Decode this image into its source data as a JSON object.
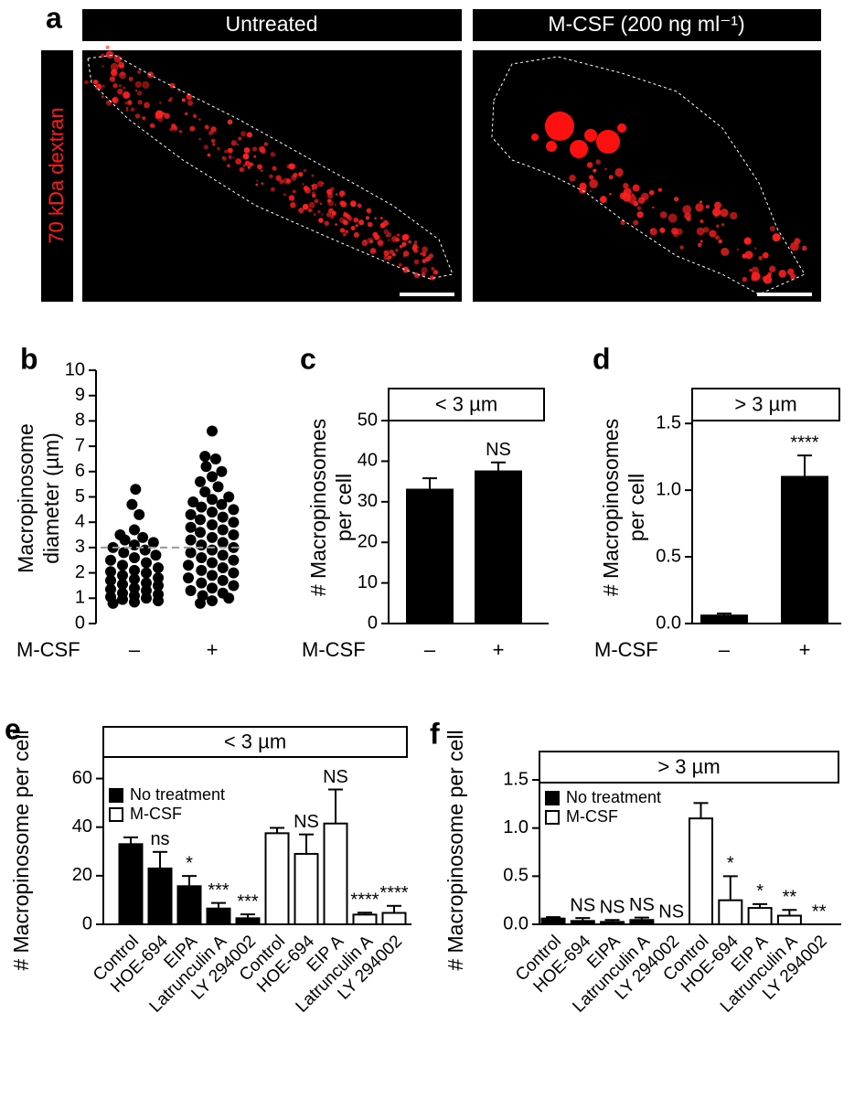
{
  "panel_a": {
    "label": "a",
    "titles": [
      "Untreated",
      "M-CSF (200 ng ml⁻¹)"
    ],
    "side_label": "70 kDa dextran"
  },
  "chart_data": [
    {
      "type": "strip",
      "panel_label": "b",
      "ylabel": [
        "Macropinosome",
        "diameter (µm)"
      ],
      "xlabel": "M-CSF",
      "categories": [
        "–",
        "+"
      ],
      "color": "#000000",
      "reference_line": 3,
      "reference_color": "#999999",
      "values": [
        [
          0.8,
          0.85,
          0.9,
          0.95,
          1.0,
          1.05,
          1.1,
          1.15,
          1.2,
          1.3,
          1.35,
          1.4,
          1.5,
          1.55,
          1.6,
          1.7,
          1.75,
          1.8,
          1.9,
          2.0,
          2.05,
          2.1,
          2.2,
          2.3,
          2.4,
          2.5,
          2.6,
          2.7,
          2.8,
          2.9,
          3.0,
          3.1,
          3.2,
          3.3,
          3.4,
          3.5,
          3.7,
          4.3,
          4.7,
          5.3
        ],
        [
          0.8,
          0.9,
          1.0,
          1.1,
          1.2,
          1.3,
          1.4,
          1.5,
          1.6,
          1.7,
          1.8,
          1.9,
          2.0,
          2.1,
          2.2,
          2.3,
          2.4,
          2.5,
          2.6,
          2.7,
          2.8,
          2.9,
          3.0,
          3.1,
          3.2,
          3.3,
          3.4,
          3.5,
          3.6,
          3.7,
          3.8,
          3.9,
          4.0,
          4.1,
          4.2,
          4.3,
          4.4,
          4.5,
          4.6,
          4.7,
          4.8,
          4.9,
          5.0,
          5.2,
          5.4,
          5.6,
          5.8,
          6.0,
          6.2,
          6.5,
          6.6,
          7.6
        ]
      ],
      "ylim": [
        0,
        10
      ],
      "yticks": [
        0,
        1,
        2,
        3,
        4,
        5,
        6,
        7,
        8,
        9,
        10
      ]
    },
    {
      "type": "bar",
      "panel_label": "c",
      "panel_title": "< 3 µm",
      "ylabel": [
        "# Macropinosomes",
        "per cell"
      ],
      "xlabel": "M-CSF",
      "categories": [
        "–",
        "+"
      ],
      "values": [
        33,
        37.5
      ],
      "errors": [
        2.8,
        2.2
      ],
      "significance": [
        null,
        "NS"
      ],
      "color": "#000000",
      "ylim": [
        0,
        57
      ],
      "yticks": [
        0,
        10,
        20,
        30,
        40,
        50
      ]
    },
    {
      "type": "bar",
      "panel_label": "d",
      "panel_title": "> 3 µm",
      "ylabel": [
        "# Macropinosomes",
        "per cell"
      ],
      "xlabel": "M-CSF",
      "categories": [
        "–",
        "+"
      ],
      "values": [
        0.06,
        1.1
      ],
      "errors": [
        0.015,
        0.16
      ],
      "significance": [
        null,
        "****"
      ],
      "color": "#000000",
      "ylim": [
        0,
        1.7
      ],
      "yticks": [
        {
          "value": 0,
          "label": "0.0"
        },
        0.5,
        {
          "value": 1,
          "label": "1.0"
        },
        1.5
      ]
    },
    {
      "type": "grouped_bar",
      "panel_label": "e",
      "panel_title": "< 3 µm",
      "ylabel": [
        "# Macropinosome per cell"
      ],
      "categories": [
        "Control",
        "HOE-694",
        "EIPA",
        "Latrunculin A",
        "LY 294002",
        "Control",
        "HOE-694",
        "EIP A",
        "Latrunculin A",
        "LY 294002"
      ],
      "series": [
        {
          "name": "No treatment",
          "color": "#000000",
          "values": [
            33,
            23,
            15.7,
            6.5,
            2.5,
            null,
            null,
            null,
            null,
            null
          ],
          "errors": [
            2.8,
            6.8,
            4.2,
            2.3,
            1.6,
            null,
            null,
            null,
            null,
            null
          ]
        },
        {
          "name": "M-CSF",
          "color": "#ffffff",
          "values": [
            null,
            null,
            null,
            null,
            null,
            37.5,
            29,
            41.5,
            4,
            4.7
          ],
          "errors": [
            null,
            null,
            null,
            null,
            null,
            2.2,
            8,
            14,
            0.8,
            2.9
          ]
        }
      ],
      "significance": [
        null,
        "ns",
        "*",
        "***",
        "***",
        null,
        "NS",
        "NS",
        "****",
        "****"
      ],
      "ylim": [
        0,
        70
      ],
      "yticks": [
        0,
        20,
        40,
        60
      ]
    },
    {
      "type": "grouped_bar",
      "panel_label": "f",
      "panel_title": "> 3 µm",
      "ylabel": [
        "# Macropinosome per cell"
      ],
      "categories": [
        "Control",
        "HOE-694",
        "EIPA",
        "Latrunculin A",
        "LY 294002",
        "Control",
        "HOE-694",
        "EIP A",
        "Latrunculin A",
        "LY 294002"
      ],
      "series": [
        {
          "name": "No treatment",
          "color": "#000000",
          "values": [
            0.06,
            0.035,
            0.025,
            0.045,
            0,
            null,
            null,
            null,
            null,
            null
          ],
          "errors": [
            0.015,
            0.03,
            0.02,
            0.025,
            0,
            null,
            null,
            null,
            null,
            null
          ]
        },
        {
          "name": "M-CSF",
          "color": "#ffffff",
          "values": [
            null,
            null,
            null,
            null,
            null,
            1.1,
            0.25,
            0.17,
            0.09,
            0
          ],
          "errors": [
            null,
            null,
            null,
            null,
            null,
            0.16,
            0.25,
            0.04,
            0.06,
            0
          ]
        }
      ],
      "significance": [
        null,
        "NS",
        "NS",
        "NS",
        "NS",
        null,
        "*",
        "*",
        "**",
        "**"
      ],
      "ylim": [
        0,
        1.7
      ],
      "yticks": [
        {
          "value": 0,
          "label": "0.0"
        },
        0.5,
        {
          "value": 1,
          "label": "1.0"
        },
        1.5
      ]
    }
  ]
}
